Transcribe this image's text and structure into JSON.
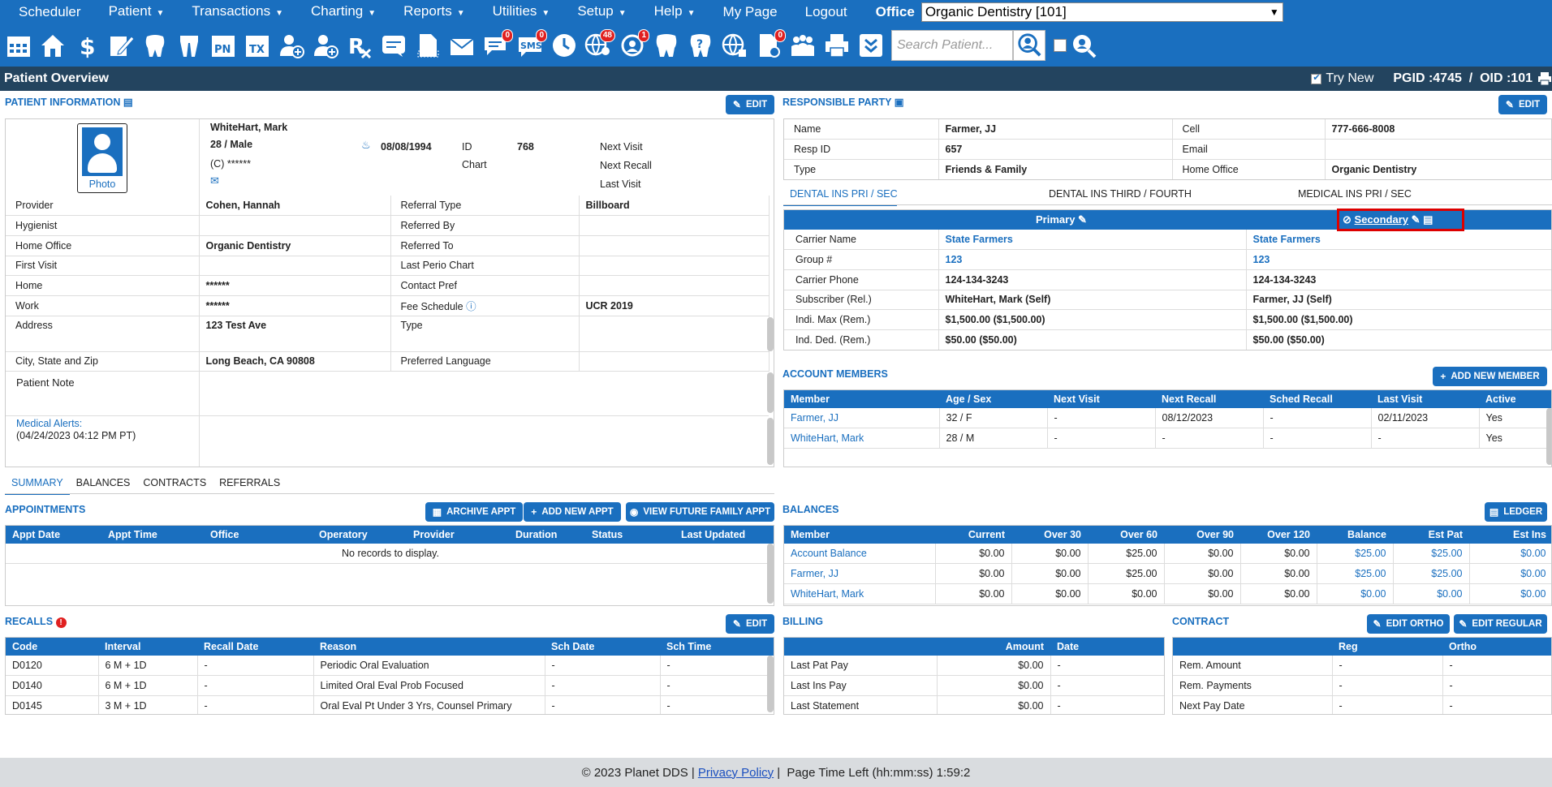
{
  "menu": {
    "items": [
      "Scheduler",
      "Patient",
      "Transactions",
      "Charting",
      "Reports",
      "Utilities",
      "Setup",
      "Help",
      "My Page",
      "Logout"
    ],
    "office_label": "Office",
    "office_value": "Organic Dentistry [101]"
  },
  "toolbar": {
    "badges": {
      "messages": "0",
      "sms": "0",
      "online": "48",
      "recall": "1"
    },
    "search_placeholder": "Search Patient..."
  },
  "title": {
    "text": "Patient Overview",
    "try_new": "Try New",
    "pgid": "PGID :4745  /  OID :101"
  },
  "patient": {
    "section": "PATIENT INFORMATION",
    "edit": "EDIT",
    "photo": "Photo",
    "name": "WhiteHart, Mark",
    "age_sex": "28 / Male",
    "dob": "08/08/1994",
    "id_label": "ID",
    "id": "768",
    "chart_label": "Chart",
    "phone": "(C) ******",
    "next_visit": "Next Visit",
    "next_recall": "Next Recall",
    "last_visit": "Last Visit",
    "rows": [
      [
        "Provider",
        "Cohen, Hannah",
        "Referral Type",
        "Billboard"
      ],
      [
        "Hygienist",
        "",
        "Referred By",
        ""
      ],
      [
        "Home Office",
        "Organic Dentistry",
        "Referred To",
        ""
      ],
      [
        "First Visit",
        "",
        "Last Perio Chart",
        ""
      ],
      [
        "Home",
        "******",
        "Contact Pref",
        ""
      ],
      [
        "Work",
        "******",
        "Fee Schedule",
        "UCR 2019"
      ],
      [
        "Address",
        "123 Test Ave",
        "Type",
        ""
      ],
      [
        "City, State and Zip",
        "Long Beach, CA 90808",
        "Preferred Language",
        ""
      ]
    ],
    "note_label": "Patient Note",
    "alerts_label": "Medical Alerts:",
    "alerts_date": "(04/24/2023 04:12 PM PT)"
  },
  "resp": {
    "section": "RESPONSIBLE PARTY",
    "edit": "EDIT",
    "rows": [
      [
        "Name",
        "Farmer, JJ",
        "Cell",
        "777-666-8008"
      ],
      [
        "Resp ID",
        "657",
        "Email",
        ""
      ],
      [
        "Type",
        "Friends & Family",
        "Home Office",
        "Organic Dentistry"
      ]
    ]
  },
  "ins": {
    "tabs": [
      "DENTAL INS PRI / SEC",
      "DENTAL INS THIRD / FOURTH",
      "MEDICAL INS PRI / SEC"
    ],
    "primary": "Primary",
    "secondary": "Secondary",
    "rows": [
      [
        "Carrier Name",
        "State Farmers",
        "State Farmers"
      ],
      [
        "Group #",
        "123",
        "123"
      ],
      [
        "Carrier Phone",
        "124-134-3243",
        "124-134-3243"
      ],
      [
        "Subscriber (Rel.)",
        "WhiteHart, Mark (Self)",
        "Farmer, JJ (Self)"
      ],
      [
        "Indi. Max (Rem.)",
        "$1,500.00 ($1,500.00)",
        "$1,500.00 ($1,500.00)"
      ],
      [
        "Ind. Ded. (Rem.)",
        "$50.00 ($50.00)",
        "$50.00 ($50.00)"
      ]
    ]
  },
  "members": {
    "section": "ACCOUNT MEMBERS",
    "add": "ADD NEW MEMBER",
    "cols": [
      "Member",
      "Age / Sex",
      "Next Visit",
      "Next Recall",
      "Sched Recall",
      "Last Visit",
      "Active"
    ],
    "rows": [
      [
        "Farmer, JJ",
        "32 / F",
        "-",
        "08/12/2023",
        "-",
        "02/11/2023",
        "Yes"
      ],
      [
        "WhiteHart, Mark",
        "28 / M",
        "-",
        "-",
        "-",
        "-",
        "Yes"
      ]
    ]
  },
  "lower_tabs": [
    "SUMMARY",
    "BALANCES",
    "CONTRACTS",
    "REFERRALS"
  ],
  "appts": {
    "section": "APPOINTMENTS",
    "archive": "ARCHIVE APPT",
    "add": "ADD NEW APPT",
    "future": "VIEW FUTURE FAMILY APPT",
    "cols": [
      "Appt Date",
      "Appt Time",
      "Office",
      "Operatory",
      "Provider",
      "Duration",
      "Status",
      "Last Updated"
    ],
    "empty": "No records to display."
  },
  "balances": {
    "section": "BALANCES",
    "ledger": "LEDGER",
    "cols": [
      "Member",
      "Current",
      "Over 30",
      "Over 60",
      "Over 90",
      "Over 120",
      "Balance",
      "Est Pat",
      "Est Ins"
    ],
    "rows": [
      [
        "Account Balance",
        "$0.00",
        "$0.00",
        "$25.00",
        "$0.00",
        "$0.00",
        "$25.00",
        "$25.00",
        "$0.00"
      ],
      [
        "Farmer, JJ",
        "$0.00",
        "$0.00",
        "$25.00",
        "$0.00",
        "$0.00",
        "$25.00",
        "$25.00",
        "$0.00"
      ],
      [
        "WhiteHart, Mark",
        "$0.00",
        "$0.00",
        "$0.00",
        "$0.00",
        "$0.00",
        "$0.00",
        "$0.00",
        "$0.00"
      ]
    ]
  },
  "recalls": {
    "section": "RECALLS",
    "edit": "EDIT",
    "cols": [
      "Code",
      "Interval",
      "Recall Date",
      "Reason",
      "Sch Date",
      "Sch Time"
    ],
    "rows": [
      [
        "D0120",
        "6 M + 1D",
        "-",
        "Periodic Oral Evaluation",
        "-",
        "-"
      ],
      [
        "D0140",
        "6 M + 1D",
        "-",
        "Limited Oral Eval Prob Focused",
        "-",
        "-"
      ],
      [
        "D0145",
        "3 M + 1D",
        "-",
        "Oral Eval Pt Under 3 Yrs, Counsel Primary",
        "-",
        "-"
      ]
    ]
  },
  "billing": {
    "section": "BILLING",
    "cols": [
      "",
      "Amount",
      "Date"
    ],
    "rows": [
      [
        "Last Pat Pay",
        "$0.00",
        "-"
      ],
      [
        "Last Ins Pay",
        "$0.00",
        "-"
      ],
      [
        "Last Statement",
        "$0.00",
        "-"
      ]
    ]
  },
  "contract": {
    "section": "CONTRACT",
    "edit_ortho": "EDIT ORTHO",
    "edit_regular": "EDIT REGULAR",
    "cols": [
      "",
      "Reg",
      "Ortho"
    ],
    "rows": [
      [
        "Rem. Amount",
        "-",
        "-"
      ],
      [
        "Rem. Payments",
        "-",
        "-"
      ],
      [
        "Next Pay Date",
        "-",
        "-"
      ]
    ]
  },
  "footer": {
    "copyright": "© 2023 Planet DDS |",
    "privacy": "Privacy Policy",
    "time": "|  Page Time Left (hh:mm:ss) 1:59:2"
  }
}
